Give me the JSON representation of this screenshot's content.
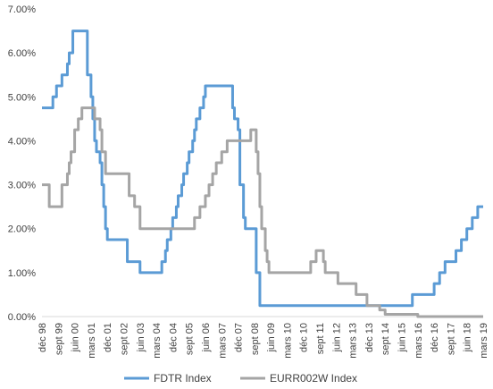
{
  "chart_data": {
    "type": "line",
    "title": "",
    "xlabel": "",
    "ylabel": "",
    "ylim": [
      0,
      7
    ],
    "y_tick_labels": [
      "0.00%",
      "1.00%",
      "2.00%",
      "3.00%",
      "4.00%",
      "5.00%",
      "6.00%",
      "7.00%"
    ],
    "x_range": [
      "1998-12",
      "2019-03"
    ],
    "x_tick_labels": [
      {
        "date": "1998-12",
        "label": "déc 98"
      },
      {
        "date": "1999-09",
        "label": "sept 99"
      },
      {
        "date": "2000-06",
        "label": "juin 00"
      },
      {
        "date": "2001-03",
        "label": "mars 01"
      },
      {
        "date": "2001-12",
        "label": "déc 01"
      },
      {
        "date": "2002-09",
        "label": "sept 02"
      },
      {
        "date": "2003-06",
        "label": "juin 03"
      },
      {
        "date": "2004-03",
        "label": "mars 04"
      },
      {
        "date": "2004-12",
        "label": "déc 04"
      },
      {
        "date": "2005-09",
        "label": "sept 05"
      },
      {
        "date": "2006-06",
        "label": "juin 06"
      },
      {
        "date": "2007-03",
        "label": "mars 07"
      },
      {
        "date": "2007-12",
        "label": "déc 07"
      },
      {
        "date": "2008-09",
        "label": "sept 08"
      },
      {
        "date": "2009-06",
        "label": "juin 09"
      },
      {
        "date": "2010-03",
        "label": "mars 10"
      },
      {
        "date": "2010-12",
        "label": "déc 10"
      },
      {
        "date": "2011-09",
        "label": "sept 11"
      },
      {
        "date": "2012-06",
        "label": "juin 12"
      },
      {
        "date": "2013-03",
        "label": "mars 13"
      },
      {
        "date": "2013-12",
        "label": "déc 13"
      },
      {
        "date": "2014-09",
        "label": "sept 14"
      },
      {
        "date": "2015-06",
        "label": "juin 15"
      },
      {
        "date": "2016-03",
        "label": "mars 16"
      },
      {
        "date": "2016-12",
        "label": "déc 16"
      },
      {
        "date": "2017-09",
        "label": "sept 17"
      },
      {
        "date": "2018-06",
        "label": "juin 18"
      },
      {
        "date": "2019-03",
        "label": "mars 19"
      }
    ],
    "grid": false,
    "legend_position": "bottom-center",
    "series": [
      {
        "name": "FDTR Index",
        "color": "#5b9bd5",
        "points": [
          [
            "1998-12",
            4.75
          ],
          [
            "1999-06",
            4.75
          ],
          [
            "1999-06",
            5.0
          ],
          [
            "1999-08",
            5.0
          ],
          [
            "1999-08",
            5.25
          ],
          [
            "1999-11",
            5.25
          ],
          [
            "1999-11",
            5.5
          ],
          [
            "2000-02",
            5.5
          ],
          [
            "2000-02",
            5.75
          ],
          [
            "2000-03",
            5.75
          ],
          [
            "2000-03",
            6.0
          ],
          [
            "2000-05",
            6.0
          ],
          [
            "2000-05",
            6.5
          ],
          [
            "2001-01",
            6.5
          ],
          [
            "2001-01",
            6.0
          ],
          [
            "2001-01",
            5.5
          ],
          [
            "2001-03",
            5.5
          ],
          [
            "2001-03",
            5.0
          ],
          [
            "2001-04",
            5.0
          ],
          [
            "2001-04",
            4.5
          ],
          [
            "2001-05",
            4.5
          ],
          [
            "2001-05",
            4.0
          ],
          [
            "2001-06",
            4.0
          ],
          [
            "2001-06",
            3.75
          ],
          [
            "2001-08",
            3.75
          ],
          [
            "2001-08",
            3.5
          ],
          [
            "2001-09",
            3.5
          ],
          [
            "2001-09",
            3.0
          ],
          [
            "2001-10",
            3.0
          ],
          [
            "2001-10",
            2.5
          ],
          [
            "2001-11",
            2.5
          ],
          [
            "2001-11",
            2.0
          ],
          [
            "2001-12",
            2.0
          ],
          [
            "2001-12",
            1.75
          ],
          [
            "2002-11",
            1.75
          ],
          [
            "2002-11",
            1.25
          ],
          [
            "2003-06",
            1.25
          ],
          [
            "2003-06",
            1.0
          ],
          [
            "2004-06",
            1.0
          ],
          [
            "2004-06",
            1.25
          ],
          [
            "2004-08",
            1.25
          ],
          [
            "2004-08",
            1.5
          ],
          [
            "2004-09",
            1.5
          ],
          [
            "2004-09",
            1.75
          ],
          [
            "2004-11",
            1.75
          ],
          [
            "2004-11",
            2.0
          ],
          [
            "2004-12",
            2.0
          ],
          [
            "2004-12",
            2.25
          ],
          [
            "2005-02",
            2.25
          ],
          [
            "2005-02",
            2.5
          ],
          [
            "2005-03",
            2.5
          ],
          [
            "2005-03",
            2.75
          ],
          [
            "2005-05",
            2.75
          ],
          [
            "2005-05",
            3.0
          ],
          [
            "2005-06",
            3.0
          ],
          [
            "2005-06",
            3.25
          ],
          [
            "2005-08",
            3.25
          ],
          [
            "2005-08",
            3.5
          ],
          [
            "2005-09",
            3.5
          ],
          [
            "2005-09",
            3.75
          ],
          [
            "2005-11",
            3.75
          ],
          [
            "2005-11",
            4.0
          ],
          [
            "2005-12",
            4.0
          ],
          [
            "2005-12",
            4.25
          ],
          [
            "2006-01",
            4.25
          ],
          [
            "2006-01",
            4.5
          ],
          [
            "2006-03",
            4.5
          ],
          [
            "2006-03",
            4.75
          ],
          [
            "2006-05",
            4.75
          ],
          [
            "2006-05",
            5.0
          ],
          [
            "2006-06",
            5.0
          ],
          [
            "2006-06",
            5.25
          ],
          [
            "2007-09",
            5.25
          ],
          [
            "2007-09",
            4.75
          ],
          [
            "2007-10",
            4.75
          ],
          [
            "2007-10",
            4.5
          ],
          [
            "2007-12",
            4.5
          ],
          [
            "2007-12",
            4.25
          ],
          [
            "2008-01",
            4.25
          ],
          [
            "2008-01",
            3.5
          ],
          [
            "2008-01",
            3.0
          ],
          [
            "2008-03",
            3.0
          ],
          [
            "2008-03",
            2.25
          ],
          [
            "2008-04",
            2.25
          ],
          [
            "2008-04",
            2.0
          ],
          [
            "2008-10",
            2.0
          ],
          [
            "2008-10",
            1.5
          ],
          [
            "2008-10",
            1.0
          ],
          [
            "2008-12",
            1.0
          ],
          [
            "2008-12",
            0.25
          ],
          [
            "2015-12",
            0.25
          ],
          [
            "2015-12",
            0.5
          ],
          [
            "2016-12",
            0.5
          ],
          [
            "2016-12",
            0.75
          ],
          [
            "2017-03",
            0.75
          ],
          [
            "2017-03",
            1.0
          ],
          [
            "2017-06",
            1.0
          ],
          [
            "2017-06",
            1.25
          ],
          [
            "2017-12",
            1.25
          ],
          [
            "2017-12",
            1.5
          ],
          [
            "2018-03",
            1.5
          ],
          [
            "2018-03",
            1.75
          ],
          [
            "2018-06",
            1.75
          ],
          [
            "2018-06",
            2.0
          ],
          [
            "2018-09",
            2.0
          ],
          [
            "2018-09",
            2.25
          ],
          [
            "2018-12",
            2.25
          ],
          [
            "2018-12",
            2.5
          ],
          [
            "2019-03",
            2.5
          ]
        ]
      },
      {
        "name": "EURR002W Index",
        "color": "#a5a5a5",
        "points": [
          [
            "1998-12",
            3.0
          ],
          [
            "1999-04",
            3.0
          ],
          [
            "1999-04",
            2.5
          ],
          [
            "1999-11",
            2.5
          ],
          [
            "1999-11",
            3.0
          ],
          [
            "2000-02",
            3.0
          ],
          [
            "2000-02",
            3.25
          ],
          [
            "2000-03",
            3.25
          ],
          [
            "2000-03",
            3.5
          ],
          [
            "2000-04",
            3.5
          ],
          [
            "2000-04",
            3.75
          ],
          [
            "2000-06",
            3.75
          ],
          [
            "2000-06",
            4.25
          ],
          [
            "2000-08",
            4.25
          ],
          [
            "2000-08",
            4.5
          ],
          [
            "2000-10",
            4.5
          ],
          [
            "2000-10",
            4.75
          ],
          [
            "2001-05",
            4.75
          ],
          [
            "2001-05",
            4.5
          ],
          [
            "2001-08",
            4.5
          ],
          [
            "2001-08",
            4.25
          ],
          [
            "2001-09",
            4.25
          ],
          [
            "2001-09",
            3.75
          ],
          [
            "2001-11",
            3.75
          ],
          [
            "2001-11",
            3.25
          ],
          [
            "2002-12",
            3.25
          ],
          [
            "2002-12",
            2.75
          ],
          [
            "2003-03",
            2.75
          ],
          [
            "2003-03",
            2.5
          ],
          [
            "2003-06",
            2.5
          ],
          [
            "2003-06",
            2.0
          ],
          [
            "2005-12",
            2.0
          ],
          [
            "2005-12",
            2.25
          ],
          [
            "2006-03",
            2.25
          ],
          [
            "2006-03",
            2.5
          ],
          [
            "2006-06",
            2.5
          ],
          [
            "2006-06",
            2.75
          ],
          [
            "2006-08",
            2.75
          ],
          [
            "2006-08",
            3.0
          ],
          [
            "2006-10",
            3.0
          ],
          [
            "2006-10",
            3.25
          ],
          [
            "2006-12",
            3.25
          ],
          [
            "2006-12",
            3.5
          ],
          [
            "2007-03",
            3.5
          ],
          [
            "2007-03",
            3.75
          ],
          [
            "2007-06",
            3.75
          ],
          [
            "2007-06",
            4.0
          ],
          [
            "2008-07",
            4.0
          ],
          [
            "2008-07",
            4.25
          ],
          [
            "2008-10",
            4.25
          ],
          [
            "2008-10",
            3.75
          ],
          [
            "2008-11",
            3.75
          ],
          [
            "2008-11",
            3.25
          ],
          [
            "2008-12",
            3.25
          ],
          [
            "2008-12",
            2.5
          ],
          [
            "2009-01",
            2.5
          ],
          [
            "2009-01",
            2.0
          ],
          [
            "2009-03",
            2.0
          ],
          [
            "2009-03",
            1.5
          ],
          [
            "2009-04",
            1.5
          ],
          [
            "2009-04",
            1.25
          ],
          [
            "2009-05",
            1.25
          ],
          [
            "2009-05",
            1.0
          ],
          [
            "2011-04",
            1.0
          ],
          [
            "2011-04",
            1.25
          ],
          [
            "2011-07",
            1.25
          ],
          [
            "2011-07",
            1.5
          ],
          [
            "2011-11",
            1.5
          ],
          [
            "2011-11",
            1.25
          ],
          [
            "2011-12",
            1.25
          ],
          [
            "2011-12",
            1.0
          ],
          [
            "2012-07",
            1.0
          ],
          [
            "2012-07",
            0.75
          ],
          [
            "2013-05",
            0.75
          ],
          [
            "2013-05",
            0.5
          ],
          [
            "2013-11",
            0.5
          ],
          [
            "2013-11",
            0.25
          ],
          [
            "2014-06",
            0.25
          ],
          [
            "2014-06",
            0.15
          ],
          [
            "2014-09",
            0.15
          ],
          [
            "2014-09",
            0.05
          ],
          [
            "2016-03",
            0.05
          ],
          [
            "2016-03",
            0.0
          ],
          [
            "2019-03",
            0.0
          ]
        ]
      }
    ]
  }
}
